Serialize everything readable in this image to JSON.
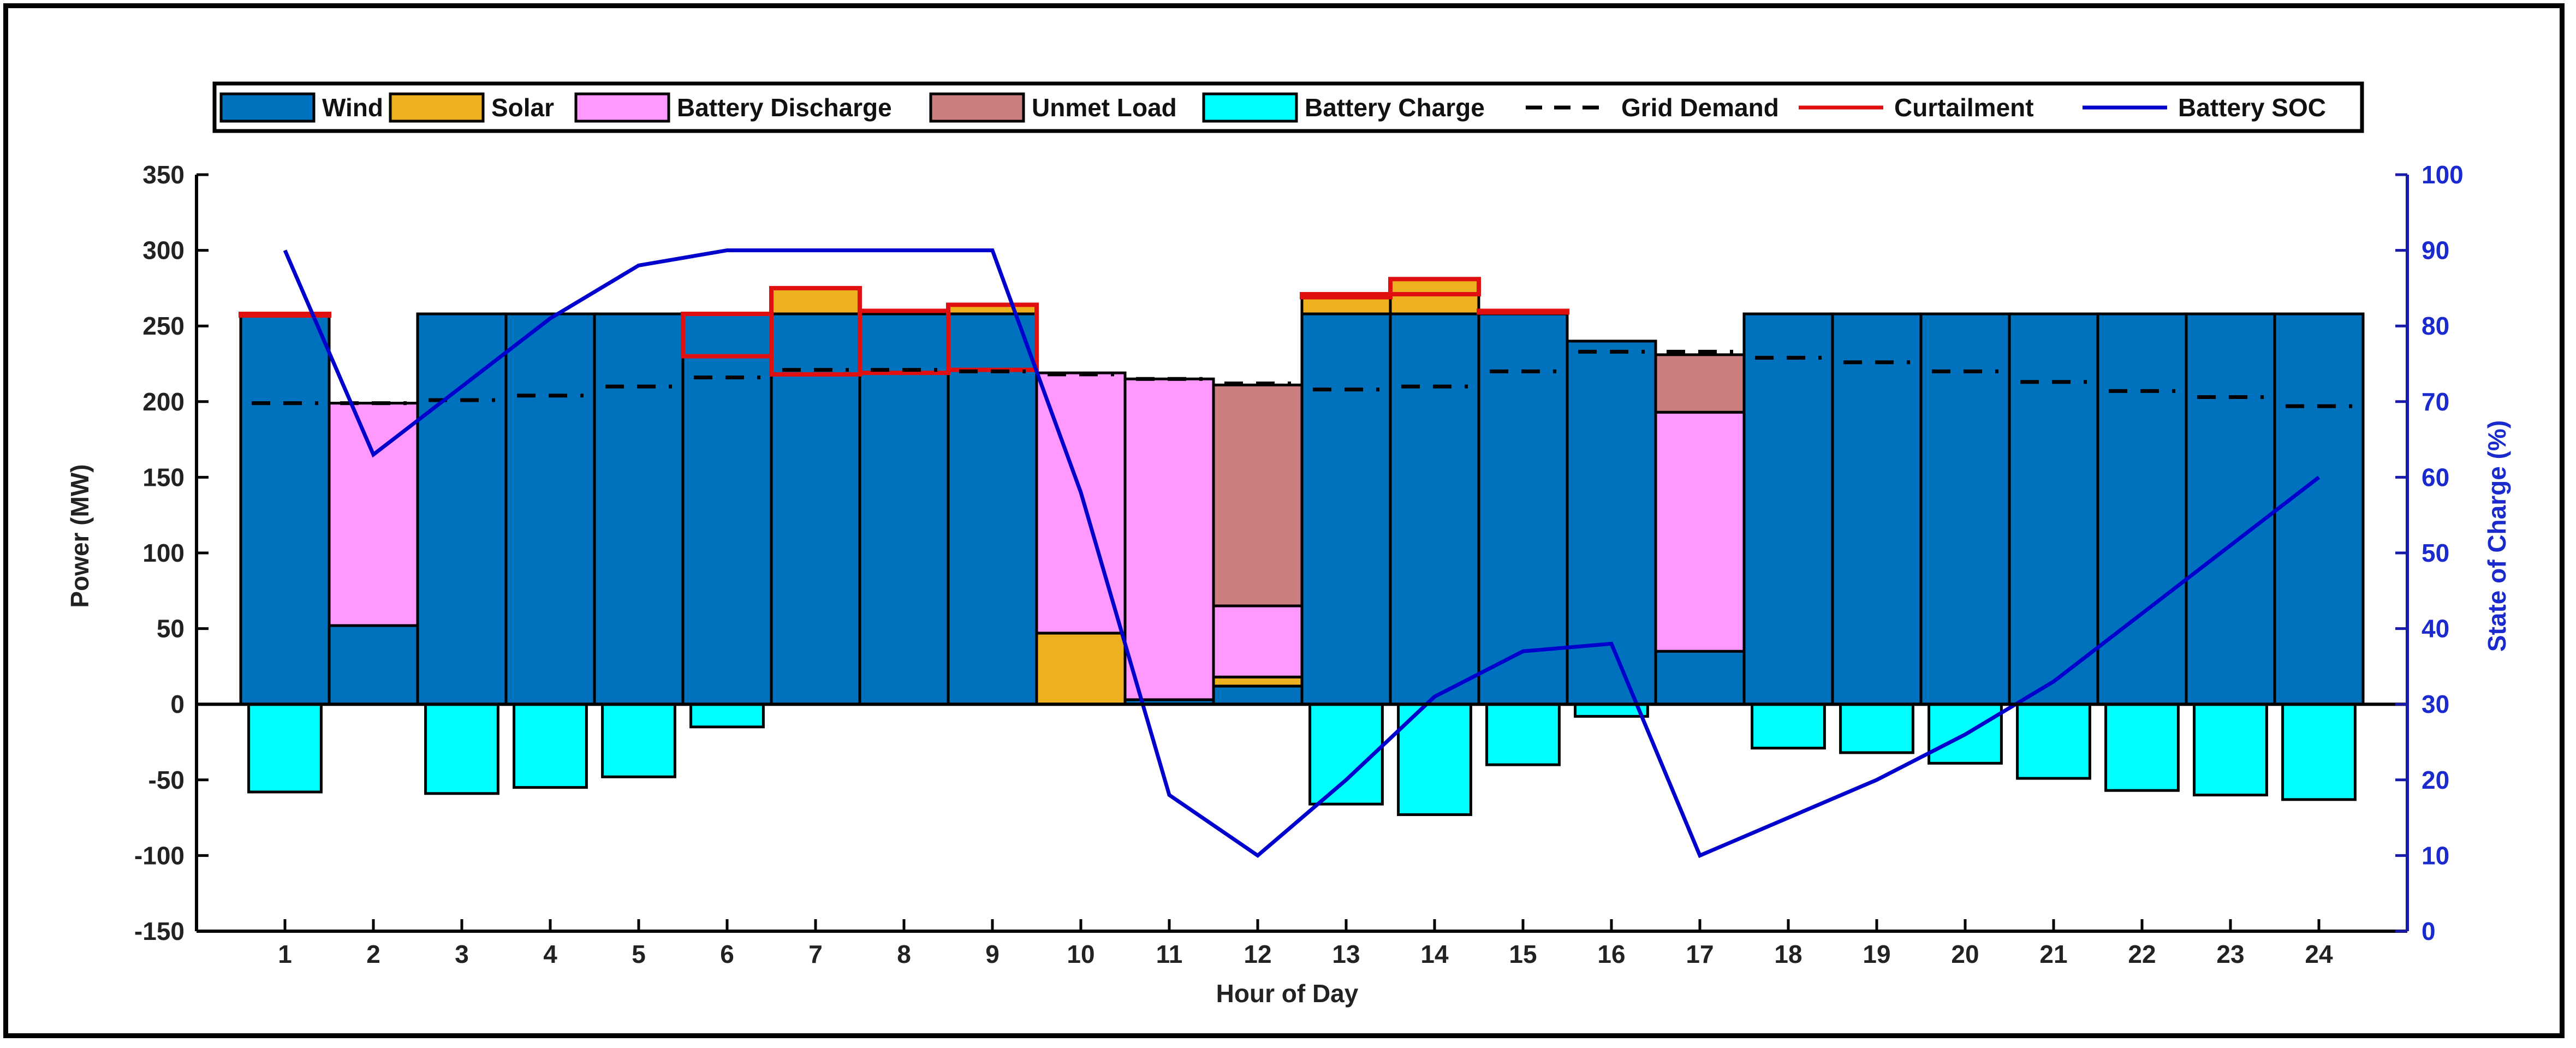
{
  "chart_data": {
    "type": "bar",
    "subtype": "stacked bar with line overlays and dual y-axis",
    "title": "",
    "xlabel": "Hour of Day",
    "ylabel": "Power (MW)",
    "y2label": "State of Charge (%)",
    "ylim": [
      -150,
      350
    ],
    "y2lim": [
      0,
      100
    ],
    "xlim": [
      0,
      25
    ],
    "yticks": [
      "350",
      "300",
      "250",
      "200",
      "150",
      "100",
      "50",
      "0",
      "-50",
      "-100",
      "-150"
    ],
    "yticks_values": [
      350,
      300,
      250,
      200,
      150,
      100,
      50,
      0,
      -50,
      -100,
      -150
    ],
    "y2ticks": [
      "100",
      "90",
      "80",
      "70",
      "60",
      "50",
      "40",
      "30",
      "20",
      "10",
      "0"
    ],
    "y2ticks_values": [
      100,
      90,
      80,
      70,
      60,
      50,
      40,
      30,
      20,
      10,
      0
    ],
    "categories": [
      "1",
      "2",
      "3",
      "4",
      "5",
      "6",
      "7",
      "8",
      "9",
      "10",
      "11",
      "12",
      "13",
      "14",
      "15",
      "16",
      "17",
      "18",
      "19",
      "20",
      "21",
      "22",
      "23",
      "24"
    ],
    "legend": {
      "position": "top-center",
      "entries": [
        {
          "label": "Wind",
          "kind": "patch",
          "color": "#0072BD"
        },
        {
          "label": "Solar",
          "kind": "patch",
          "color": "#EDB120"
        },
        {
          "label": "Battery Discharge",
          "kind": "patch",
          "color": "#FF99FF"
        },
        {
          "label": "Unmet Load",
          "kind": "patch",
          "color": "#CD7F7F"
        },
        {
          "label": "Battery Charge",
          "kind": "patch",
          "color": "#00FFFF"
        },
        {
          "label": "Grid Demand",
          "kind": "dashed",
          "color": "#000000"
        },
        {
          "label": "Curtailment",
          "kind": "line",
          "color": "#E01010"
        },
        {
          "label": "Battery SOC",
          "kind": "line",
          "color": "#0000CC"
        }
      ]
    },
    "series": [
      {
        "name": "Wind",
        "color": "#0072BD",
        "values": [
          258,
          52,
          258,
          258,
          258,
          258,
          258,
          258,
          258,
          0,
          3,
          12,
          258,
          258,
          258,
          240,
          35,
          258,
          258,
          258,
          258,
          258,
          258,
          258
        ]
      },
      {
        "name": "Solar",
        "color": "#EDB120",
        "values": [
          0,
          0,
          0,
          0,
          0,
          0,
          17,
          2,
          6,
          47,
          0,
          6,
          13,
          23,
          2,
          0,
          0,
          0,
          0,
          0,
          0,
          0,
          0,
          0
        ]
      },
      {
        "name": "Battery Discharge",
        "color": "#FF99FF",
        "values": [
          0,
          147,
          0,
          0,
          0,
          0,
          0,
          0,
          0,
          172,
          212,
          47,
          0,
          0,
          0,
          0,
          158,
          0,
          0,
          0,
          0,
          0,
          0,
          0
        ]
      },
      {
        "name": "Unmet Load",
        "color": "#CD7F7F",
        "values": [
          0,
          0,
          0,
          0,
          0,
          0,
          0,
          0,
          0,
          0,
          0,
          146,
          0,
          0,
          0,
          0,
          38,
          0,
          0,
          0,
          0,
          0,
          0,
          0
        ]
      },
      {
        "name": "Battery Charge",
        "color": "#00FFFF",
        "values": [
          -58,
          0,
          -59,
          -55,
          -48,
          -15,
          0,
          0,
          0,
          0,
          0,
          0,
          -66,
          -73,
          -40,
          -8,
          0,
          -29,
          -32,
          -39,
          -49,
          -57,
          -60,
          -63
        ]
      }
    ],
    "curtailment": {
      "name": "Curtailment",
      "color": "#E01010",
      "values": [
        1,
        0,
        0,
        0,
        0,
        28,
        57,
        41,
        43,
        0,
        0,
        0,
        2,
        10,
        1,
        0,
        0,
        0,
        0,
        0,
        0,
        0,
        0,
        0
      ]
    },
    "grid_demand": {
      "name": "Grid Demand",
      "color": "#000000",
      "values": [
        199,
        199,
        201,
        204,
        210,
        216,
        221,
        221,
        220,
        218,
        215,
        212,
        208,
        210,
        220,
        233,
        233,
        229,
        226,
        220,
        213,
        207,
        203,
        197
      ]
    },
    "battery_soc": {
      "name": "Battery SOC",
      "color": "#0000CC",
      "values": [
        90,
        63,
        72,
        81,
        88,
        90,
        90,
        90,
        90,
        58,
        18,
        10,
        20,
        31,
        37,
        38,
        10,
        15,
        20,
        26,
        33,
        42,
        51,
        60
      ]
    }
  }
}
